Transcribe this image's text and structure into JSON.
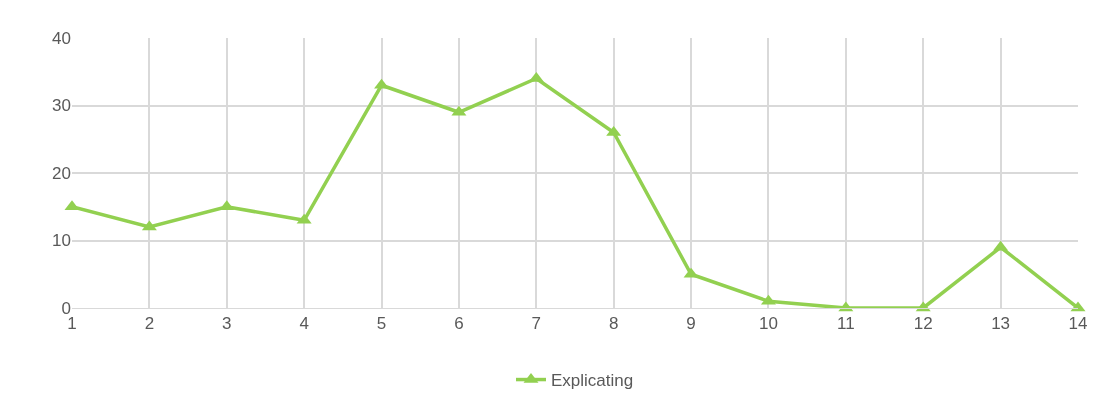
{
  "chart_data": {
    "type": "line",
    "x": [
      1,
      2,
      3,
      4,
      5,
      6,
      7,
      8,
      9,
      10,
      11,
      12,
      13,
      14
    ],
    "series": [
      {
        "name": "Explicating",
        "color": "#92d050",
        "values": [
          15,
          12,
          15,
          13,
          33,
          29,
          34,
          26,
          5,
          1,
          0,
          0,
          9,
          0
        ]
      }
    ],
    "xlim": [
      1,
      14
    ],
    "xticks": [
      1,
      2,
      3,
      4,
      5,
      6,
      7,
      8,
      9,
      10,
      11,
      12,
      13,
      14
    ],
    "ylim": [
      0,
      40
    ],
    "yticks": [
      0,
      10,
      20,
      30,
      40
    ],
    "grid": true,
    "legend": "bottom",
    "marker": "triangle",
    "line_style": "solid"
  }
}
